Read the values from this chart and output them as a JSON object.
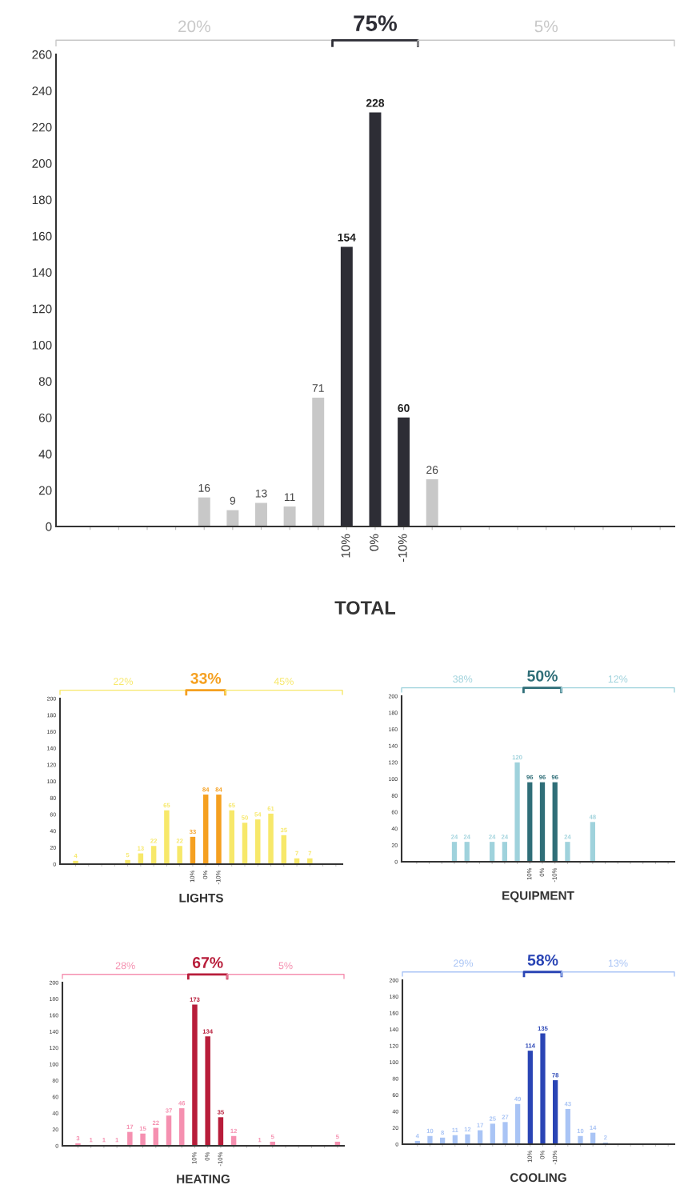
{
  "chart_data": [
    {
      "type": "bar",
      "title": "TOTAL",
      "categories": [
        null,
        null,
        null,
        null,
        null,
        null,
        null,
        null,
        null,
        "10%",
        "0%",
        "-10%",
        null,
        null,
        null,
        null,
        null,
        null,
        null,
        null,
        null
      ],
      "values": [
        null,
        null,
        null,
        null,
        16,
        9,
        13,
        11,
        71,
        154,
        228,
        60,
        26,
        null,
        null,
        null,
        null,
        null,
        null,
        null,
        null
      ],
      "colors": [
        null,
        null,
        null,
        null,
        "#c8c8c8",
        "#c8c8c8",
        "#c8c8c8",
        "#c8c8c8",
        "#c8c8c8",
        "#2d2d35",
        "#2d2d35",
        "#2d2d35",
        "#c8c8c8",
        null,
        null,
        null,
        null,
        null,
        null,
        null,
        null
      ],
      "ylim": [
        0,
        260
      ],
      "yticks": [
        0,
        20,
        40,
        60,
        80,
        100,
        120,
        140,
        160,
        180,
        200,
        220,
        240,
        260
      ],
      "data_labels": true,
      "annotations": [
        "20%",
        "75%",
        "5%"
      ]
    },
    {
      "type": "bar",
      "title": "LIGHTS",
      "categories": [
        null,
        null,
        null,
        null,
        null,
        null,
        null,
        null,
        null,
        "10%",
        "0%",
        "-10%",
        null,
        null,
        null,
        null,
        null,
        null,
        null,
        null,
        null
      ],
      "values": [
        4,
        null,
        null,
        null,
        5,
        13,
        22,
        65,
        22,
        33,
        84,
        84,
        65,
        50,
        54,
        61,
        35,
        7,
        7,
        null,
        null
      ],
      "colors": [
        "#f7e86a",
        null,
        null,
        null,
        "#f7e86a",
        "#f7e86a",
        "#f7e86a",
        "#f7e86a",
        "#f7e86a",
        "#f5a020",
        "#f5a020",
        "#f5a020",
        "#f7e86a",
        "#f7e86a",
        "#f7e86a",
        "#f7e86a",
        "#f7e86a",
        "#f7e86a",
        "#f7e86a",
        null,
        null
      ],
      "ylim": [
        0,
        200
      ],
      "yticks": [
        0,
        20,
        40,
        60,
        80,
        100,
        120,
        140,
        160,
        180,
        200
      ],
      "data_labels": true,
      "annotations": [
        "22%",
        "33%",
        "45%"
      ]
    },
    {
      "type": "bar",
      "title": "EQUIPMENT",
      "categories": [
        null,
        null,
        null,
        null,
        null,
        null,
        null,
        null,
        null,
        "10%",
        "0%",
        "-10%",
        null,
        null,
        null,
        null,
        null,
        null,
        null,
        null,
        null
      ],
      "values": [
        null,
        null,
        null,
        24,
        24,
        null,
        24,
        24,
        120,
        96,
        96,
        96,
        24,
        null,
        48,
        null,
        null,
        null,
        null,
        null,
        null
      ],
      "colors": [
        null,
        null,
        null,
        "#9fd2dc",
        "#9fd2dc",
        null,
        "#9fd2dc",
        "#9fd2dc",
        "#9fd2dc",
        "#2f6e78",
        "#2f6e78",
        "#2f6e78",
        "#9fd2dc",
        null,
        "#9fd2dc",
        null,
        null,
        null,
        null,
        null,
        null
      ],
      "ylim": [
        0,
        200
      ],
      "yticks": [
        0,
        20,
        40,
        60,
        80,
        100,
        120,
        140,
        160,
        180,
        200
      ],
      "data_labels": true,
      "annotations": [
        "38%",
        "50%",
        "12%"
      ]
    },
    {
      "type": "bar",
      "title": "HEATING",
      "categories": [
        null,
        null,
        null,
        null,
        null,
        null,
        null,
        null,
        null,
        "10%",
        "0%",
        "-10%",
        null,
        null,
        null,
        null,
        null,
        null,
        null,
        null,
        null
      ],
      "values": [
        3,
        1,
        1,
        1,
        17,
        15,
        22,
        37,
        46,
        173,
        134,
        35,
        12,
        null,
        1,
        5,
        null,
        null,
        null,
        null,
        5
      ],
      "colors": [
        "#f590b0",
        "#f590b0",
        "#f590b0",
        "#f590b0",
        "#f590b0",
        "#f590b0",
        "#f590b0",
        "#f590b0",
        "#f590b0",
        "#b81d3a",
        "#b81d3a",
        "#b81d3a",
        "#f590b0",
        null,
        "#f590b0",
        "#f590b0",
        null,
        null,
        null,
        null,
        "#f590b0"
      ],
      "ylim": [
        0,
        200
      ],
      "yticks": [
        0,
        20,
        40,
        60,
        80,
        100,
        120,
        140,
        160,
        180,
        200
      ],
      "data_labels": true,
      "annotations": [
        "28%",
        "67%",
        "5%"
      ]
    },
    {
      "type": "bar",
      "title": "COOLING",
      "categories": [
        null,
        null,
        null,
        null,
        null,
        null,
        null,
        null,
        null,
        "10%",
        "0%",
        "-10%",
        null,
        null,
        null,
        null,
        null,
        null,
        null,
        null,
        null
      ],
      "values": [
        4,
        10,
        8,
        11,
        12,
        17,
        25,
        27,
        49,
        114,
        135,
        78,
        43,
        10,
        14,
        2,
        null,
        null,
        null,
        null,
        null
      ],
      "colors": [
        "#a9c4f5",
        "#a9c4f5",
        "#a9c4f5",
        "#a9c4f5",
        "#a9c4f5",
        "#a9c4f5",
        "#a9c4f5",
        "#a9c4f5",
        "#a9c4f5",
        "#2a45b5",
        "#2a45b5",
        "#2a45b5",
        "#a9c4f5",
        "#a9c4f5",
        "#a9c4f5",
        "#a9c4f5",
        null,
        null,
        null,
        null,
        null
      ],
      "ylim": [
        0,
        200
      ],
      "yticks": [
        0,
        20,
        40,
        60,
        80,
        100,
        120,
        140,
        160,
        180,
        200
      ],
      "data_labels": true,
      "annotations": [
        "29%",
        "58%",
        "13%"
      ]
    }
  ]
}
